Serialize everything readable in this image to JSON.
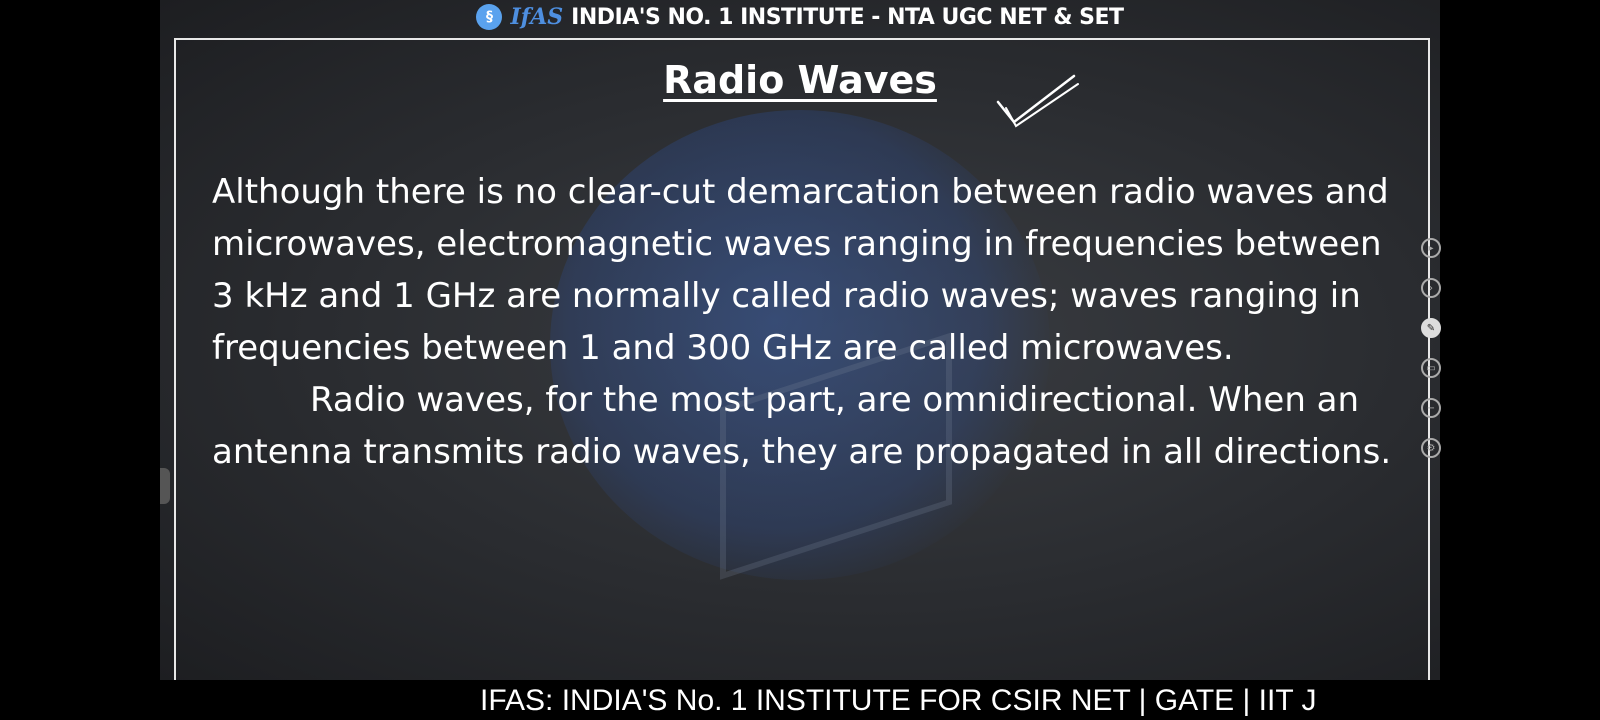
{
  "header": {
    "logo_text": "IfAS",
    "title": "INDIA'S NO. 1 INSTITUTE - NTA UGC NET & SET"
  },
  "slide": {
    "title": "Radio Waves",
    "paragraph1": "Although there is no clear-cut demarcation between radio waves and microwaves, electromagnetic waves ranging in frequencies between 3 kHz and 1 GHz are normally called radio waves; waves ranging in frequencies between 1 and 300 GHz are called microwaves.",
    "paragraph2": "Radio waves, for the most part, are omnidirectional. When an antenna transmits radio waves, they are propagated in all directions."
  },
  "toolbar": {
    "icons": [
      "play-icon",
      "next-icon",
      "pen-icon",
      "eraser-icon",
      "zoom-icon",
      "settings-icon"
    ]
  },
  "ticker": {
    "text": "IFAS: INDIA'S No. 1  INSTITUTE FOR CSIR NET | GATE | IIT J"
  }
}
